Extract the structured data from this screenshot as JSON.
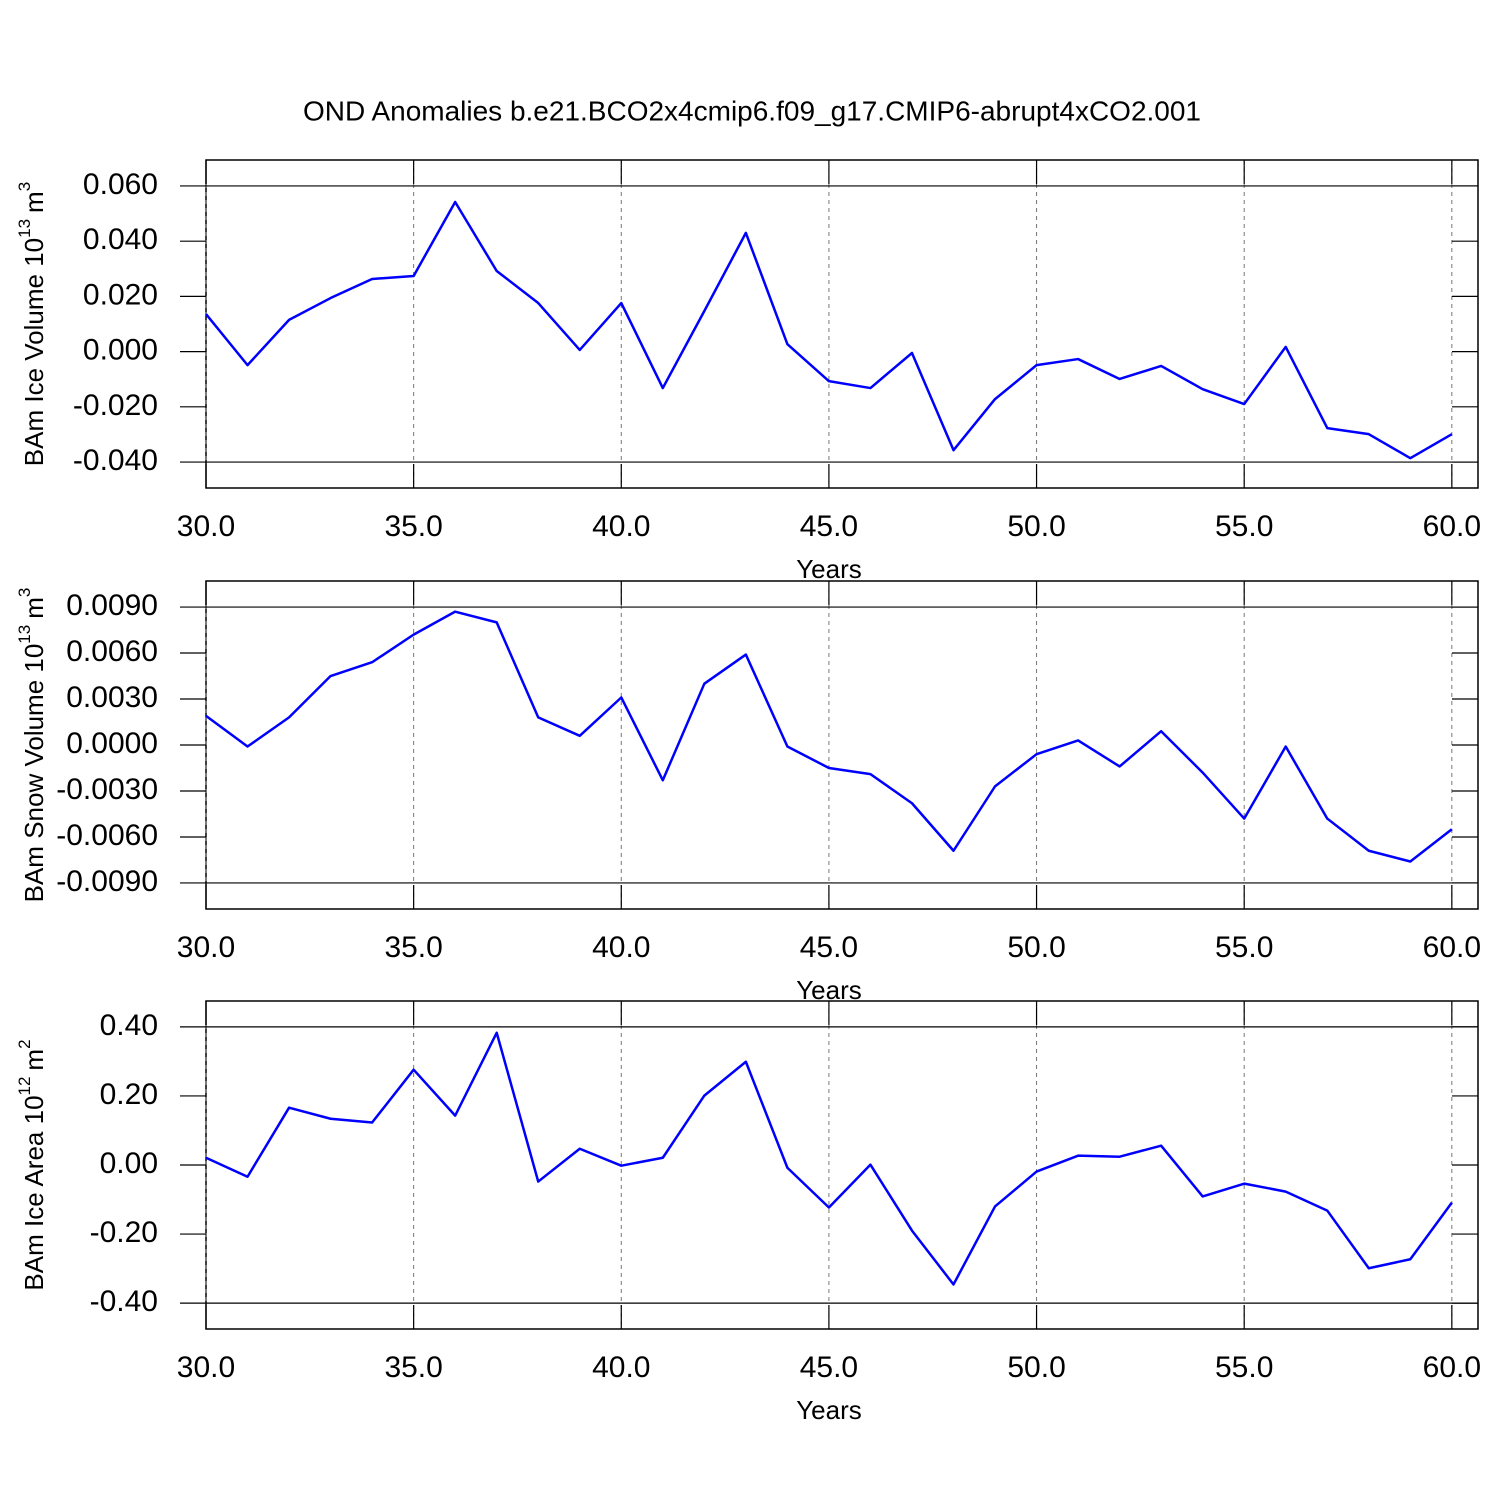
{
  "title": "OND Anomalies b.e21.BCO2x4cmip6.f09_g17.CMIP6-abrupt4xCO2.001",
  "chart_data": [
    {
      "type": "line",
      "ylabel": [
        "BAm Ice Volume 10",
        "13",
        "m",
        "3"
      ],
      "xlabel": "Years",
      "x": [
        30,
        31,
        32,
        33,
        34,
        35,
        36,
        37,
        38,
        39,
        40,
        41,
        42,
        43,
        44,
        45,
        46,
        47,
        48,
        49,
        50,
        51,
        52,
        53,
        54,
        55,
        56,
        57,
        58,
        59,
        60
      ],
      "series": [
        {
          "color": "#0000ff",
          "values": [
            0.0136,
            -0.0049,
            0.0115,
            0.0194,
            0.0263,
            0.0274,
            0.0542,
            0.0292,
            0.0176,
            0.0006,
            0.0176,
            -0.0132,
            0.0147,
            0.043,
            0.0027,
            -0.0107,
            -0.0132,
            -0.0005,
            -0.0357,
            -0.0172,
            -0.0049,
            -0.0027,
            -0.0099,
            -0.0052,
            -0.0136,
            -0.019,
            0.0017,
            -0.0277,
            -0.0299,
            -0.0386,
            -0.0299
          ]
        }
      ],
      "xlim": [
        30,
        60.63
      ],
      "ylim": [
        -0.0494,
        0.0694
      ],
      "xticks": [
        {
          "value": 30,
          "label": "30.0"
        },
        {
          "value": 35,
          "label": "35.0"
        },
        {
          "value": 40,
          "label": "40.0"
        },
        {
          "value": 45,
          "label": "45.0"
        },
        {
          "value": 50,
          "label": "50.0"
        },
        {
          "value": 55,
          "label": "55.0"
        },
        {
          "value": 60,
          "label": "60.0"
        }
      ],
      "yticks": [
        {
          "value": 0.06,
          "label": "0.060"
        },
        {
          "value": 0.04,
          "label": "0.040"
        },
        {
          "value": 0.02,
          "label": "0.020"
        },
        {
          "value": 0,
          "label": "0.000"
        },
        {
          "value": -0.02,
          "label": "-0.020"
        },
        {
          "value": -0.04,
          "label": "-0.040"
        }
      ]
    },
    {
      "type": "line",
      "ylabel": [
        "BAm Snow Volume 10",
        "13",
        "m",
        "3"
      ],
      "xlabel": "Years",
      "x": [
        30,
        31,
        32,
        33,
        34,
        35,
        36,
        37,
        38,
        39,
        40,
        41,
        42,
        43,
        44,
        45,
        46,
        47,
        48,
        49,
        50,
        51,
        52,
        53,
        54,
        55,
        56,
        57,
        58,
        59,
        60
      ],
      "series": [
        {
          "color": "#0000ff",
          "values": [
            0.0019,
            -0.0001,
            0.0018,
            0.0045,
            0.0054,
            0.0072,
            0.0087,
            0.008,
            0.0018,
            0.0006,
            0.0031,
            -0.0023,
            0.004,
            0.0059,
            -0.0001,
            -0.0015,
            -0.0019,
            -0.0038,
            -0.0069,
            -0.0027,
            -0.0006,
            0.0003,
            -0.0014,
            0.0009,
            -0.0018,
            -0.0048,
            -0.0001,
            -0.0048,
            -0.0069,
            -0.0076,
            -0.0055
          ]
        }
      ],
      "xlim": [
        30,
        60.63
      ],
      "ylim": [
        -0.0107,
        0.0107
      ],
      "xticks": [
        {
          "value": 30,
          "label": "30.0"
        },
        {
          "value": 35,
          "label": "35.0"
        },
        {
          "value": 40,
          "label": "40.0"
        },
        {
          "value": 45,
          "label": "45.0"
        },
        {
          "value": 50,
          "label": "50.0"
        },
        {
          "value": 55,
          "label": "55.0"
        },
        {
          "value": 60,
          "label": "60.0"
        }
      ],
      "yticks": [
        {
          "value": 0.009,
          "label": "0.0090"
        },
        {
          "value": 0.006,
          "label": "0.0060"
        },
        {
          "value": 0.003,
          "label": "0.0030"
        },
        {
          "value": 0,
          "label": "0.0000"
        },
        {
          "value": -0.003,
          "label": "-0.0030"
        },
        {
          "value": -0.006,
          "label": "-0.0060"
        },
        {
          "value": -0.009,
          "label": "-0.0090"
        }
      ]
    },
    {
      "type": "line",
      "ylabel": [
        "BAm Ice Area 10",
        "12",
        "m",
        "2"
      ],
      "xlabel": "Years",
      "x": [
        30,
        31,
        32,
        33,
        34,
        35,
        36,
        37,
        38,
        39,
        40,
        41,
        42,
        43,
        44,
        45,
        46,
        47,
        48,
        49,
        50,
        51,
        52,
        53,
        54,
        55,
        56,
        57,
        58,
        59,
        60
      ],
      "series": [
        {
          "color": "#0000ff",
          "values": [
            0.021,
            -0.034,
            0.166,
            0.134,
            0.123,
            0.276,
            0.143,
            0.383,
            -0.048,
            0.047,
            -0.002,
            0.021,
            0.201,
            0.299,
            -0.008,
            -0.123,
            0.001,
            -0.19,
            -0.346,
            -0.12,
            -0.019,
            0.027,
            0.024,
            0.056,
            -0.091,
            -0.054,
            -0.077,
            -0.132,
            -0.299,
            -0.273,
            -0.109
          ]
        }
      ],
      "xlim": [
        30,
        60.63
      ],
      "ylim": [
        -0.475,
        0.475
      ],
      "xticks": [
        {
          "value": 30,
          "label": "30.0"
        },
        {
          "value": 35,
          "label": "35.0"
        },
        {
          "value": 40,
          "label": "40.0"
        },
        {
          "value": 45,
          "label": "45.0"
        },
        {
          "value": 50,
          "label": "50.0"
        },
        {
          "value": 55,
          "label": "55.0"
        },
        {
          "value": 60,
          "label": "60.0"
        }
      ],
      "yticks": [
        {
          "value": 0.4,
          "label": "0.40"
        },
        {
          "value": 0.2,
          "label": "0.20"
        },
        {
          "value": 0,
          "label": "0.00"
        },
        {
          "value": -0.2,
          "label": "-0.20"
        },
        {
          "value": -0.4,
          "label": "-0.40"
        }
      ]
    }
  ]
}
